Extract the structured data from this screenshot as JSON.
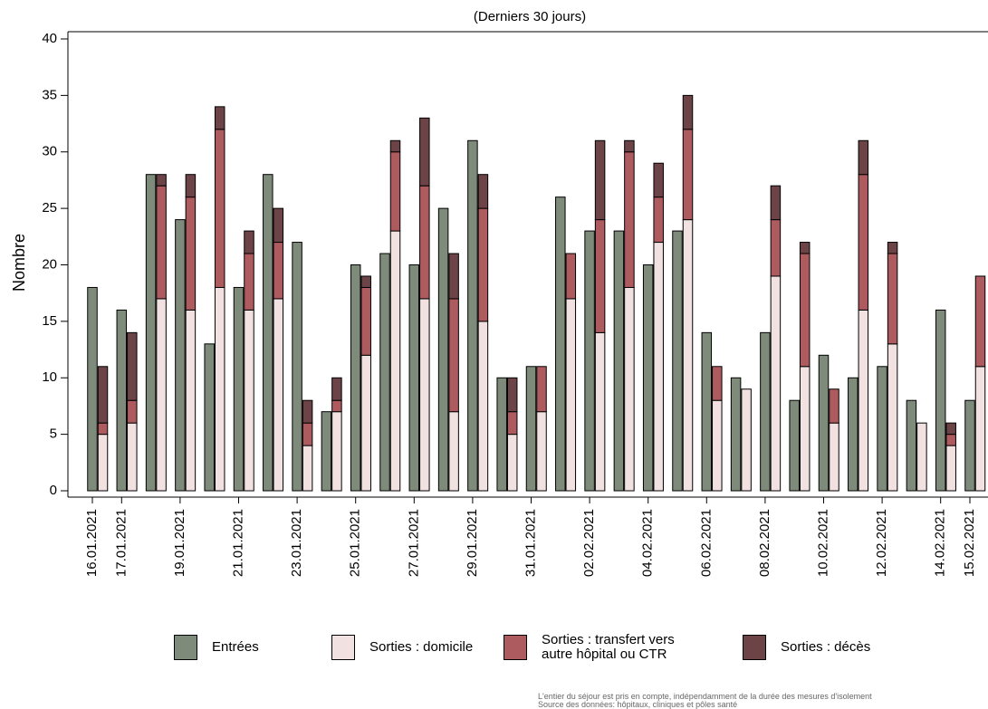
{
  "chart_data": {
    "type": "bar",
    "title": "(Derniers 30 jours)",
    "y_label": "Nombre",
    "categories": [
      "16.01.2021",
      "17.01.2021",
      null,
      "19.01.2021",
      null,
      "21.01.2021",
      null,
      "23.01.2021",
      null,
      "25.01.2021",
      null,
      "27.01.2021",
      null,
      "29.01.2021",
      null,
      "31.01.2021",
      null,
      "02.02.2021",
      null,
      "04.02.2021",
      null,
      "06.02.2021",
      null,
      "08.02.2021",
      null,
      "10.02.2021",
      null,
      "12.02.2021",
      null,
      "14.02.2021",
      "15.02.2021"
    ],
    "series": [
      {
        "name": "Entrées",
        "color": "#7e8b7b",
        "values": [
          18,
          16,
          28,
          24,
          13,
          18,
          28,
          22,
          7,
          20,
          21,
          20,
          25,
          31,
          10,
          11,
          26,
          23,
          23,
          20,
          23,
          14,
          10,
          14,
          8,
          12,
          10,
          11,
          8,
          16,
          8
        ]
      },
      {
        "name": "Sorties : domicile",
        "color": "#f1e1e1",
        "values": [
          5,
          6,
          17,
          16,
          18,
          16,
          17,
          4,
          7,
          12,
          23,
          17,
          7,
          15,
          5,
          7,
          17,
          14,
          18,
          22,
          24,
          8,
          9,
          19,
          11,
          6,
          16,
          13,
          6,
          4,
          11
        ]
      },
      {
        "name": "Sorties : transfert vers autre hôpital ou CTR",
        "color": "#ae5b60",
        "values": [
          1,
          2,
          10,
          10,
          14,
          5,
          5,
          2,
          1,
          6,
          7,
          10,
          10,
          10,
          2,
          4,
          4,
          10,
          12,
          4,
          8,
          3,
          0,
          5,
          10,
          3,
          12,
          8,
          0,
          1,
          8
        ]
      },
      {
        "name": "Sorties : décès",
        "color": "#6c4347",
        "values": [
          5,
          6,
          1,
          2,
          2,
          2,
          3,
          2,
          2,
          1,
          1,
          6,
          4,
          3,
          3,
          0,
          0,
          7,
          1,
          3,
          3,
          0,
          0,
          3,
          1,
          0,
          3,
          1,
          0,
          1,
          0
        ]
      }
    ],
    "ylim": [
      0,
      40
    ],
    "yticks": [
      0,
      5,
      10,
      15,
      20,
      25,
      30,
      35,
      40
    ],
    "footnotes": [
      "L'entier du séjour est pris en compte, indépendamment de la durée des mesures d'isolement",
      "Source des données: hôpitaux, cliniques et pôles santé"
    ]
  }
}
